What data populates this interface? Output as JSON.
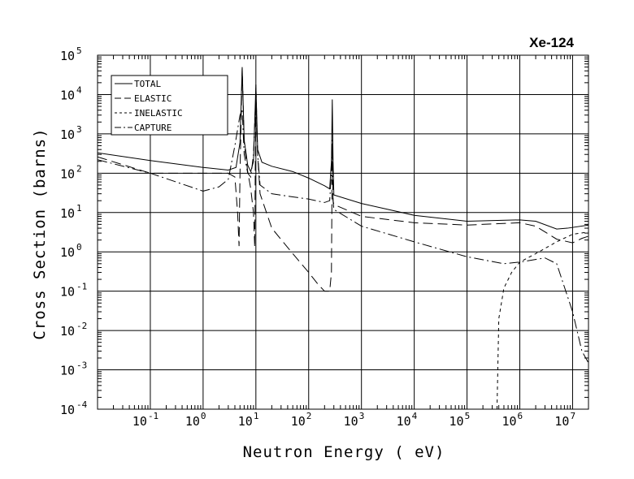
{
  "chart_data": {
    "type": "line",
    "title": "Xe-124",
    "xlabel": "Neutron Energy ( eV)",
    "ylabel": "Cross Section (barns)",
    "xscale": "log",
    "yscale": "log",
    "xlim": [
      0.01,
      20000000
    ],
    "ylim": [
      0.0001,
      100000
    ],
    "grid": true,
    "legend_position": "top-left",
    "x_ticks": [
      {
        "base": "10",
        "exp": "-1",
        "value": 0.1
      },
      {
        "base": "10",
        "exp": "0",
        "value": 1
      },
      {
        "base": "10",
        "exp": "1",
        "value": 10
      },
      {
        "base": "10",
        "exp": "2",
        "value": 100
      },
      {
        "base": "10",
        "exp": "3",
        "value": 1000
      },
      {
        "base": "10",
        "exp": "4",
        "value": 10000
      },
      {
        "base": "10",
        "exp": "5",
        "value": 100000
      },
      {
        "base": "10",
        "exp": "6",
        "value": 1000000
      },
      {
        "base": "10",
        "exp": "7",
        "value": 10000000
      }
    ],
    "y_ticks": [
      {
        "base": "10",
        "exp": "5",
        "value": 100000
      },
      {
        "base": "10",
        "exp": "4",
        "value": 10000
      },
      {
        "base": "10",
        "exp": "3",
        "value": 1000
      },
      {
        "base": "10",
        "exp": "2",
        "value": 100
      },
      {
        "base": "10",
        "exp": "1",
        "value": 10
      },
      {
        "base": "10",
        "exp": "0",
        "value": 1
      },
      {
        "base": "10",
        "exp": "-1",
        "value": 0.1
      },
      {
        "base": "10",
        "exp": "-2",
        "value": 0.01
      },
      {
        "base": "10",
        "exp": "-3",
        "value": 0.001
      },
      {
        "base": "10",
        "exp": "-4",
        "value": 0.0001
      }
    ],
    "series": [
      {
        "name": "TOTAL",
        "dash": "solid",
        "points": [
          [
            0.01,
            330
          ],
          [
            0.1,
            210
          ],
          [
            1,
            140
          ],
          [
            3,
            120
          ],
          [
            4.2,
            140
          ],
          [
            5,
            600
          ],
          [
            5.5,
            50000
          ],
          [
            6,
            700
          ],
          [
            7,
            160
          ],
          [
            8,
            110
          ],
          [
            9,
            200
          ],
          [
            10,
            18000
          ],
          [
            10.8,
            400
          ],
          [
            13,
            190
          ],
          [
            20,
            150
          ],
          [
            50,
            110
          ],
          [
            100,
            75
          ],
          [
            200,
            48
          ],
          [
            250,
            40
          ],
          [
            270,
            200
          ],
          [
            280,
            7500
          ],
          [
            290,
            200
          ],
          [
            300,
            28
          ],
          [
            1000,
            17
          ],
          [
            10000,
            8.5
          ],
          [
            100000,
            6
          ],
          [
            1000000,
            6.5
          ],
          [
            2000000,
            6
          ],
          [
            5000000,
            3.8
          ],
          [
            8000000,
            4
          ],
          [
            20000000,
            4.8
          ]
        ]
      },
      {
        "name": "ELASTIC",
        "dash": "long",
        "points": [
          [
            0.01,
            260
          ],
          [
            0.1,
            100
          ],
          [
            1,
            100
          ],
          [
            3,
            100
          ],
          [
            4,
            80
          ],
          [
            4.5,
            10
          ],
          [
            4.8,
            1.4
          ],
          [
            5,
            100
          ],
          [
            5.5,
            45000
          ],
          [
            6,
            600
          ],
          [
            7,
            110
          ],
          [
            8,
            40
          ],
          [
            9,
            10
          ],
          [
            9.5,
            1.3
          ],
          [
            10,
            17000
          ],
          [
            10.8,
            300
          ],
          [
            12,
            30
          ],
          [
            20,
            4
          ],
          [
            50,
            0.9
          ],
          [
            100,
            0.3
          ],
          [
            150,
            0.15
          ],
          [
            200,
            0.1
          ],
          [
            250,
            0.1
          ],
          [
            270,
            0.3
          ],
          [
            280,
            500
          ],
          [
            290,
            20
          ],
          [
            300,
            16
          ],
          [
            1000,
            8
          ],
          [
            10000,
            5.5
          ],
          [
            100000,
            4.8
          ],
          [
            1000000,
            5.5
          ],
          [
            2000000,
            4.5
          ],
          [
            5000000,
            2.1
          ],
          [
            10000000,
            1.7
          ],
          [
            15000000,
            2.2
          ],
          [
            20000000,
            2.5
          ]
        ]
      },
      {
        "name": "INELASTIC",
        "dash": "short",
        "points": [
          [
            370000,
            0.0001
          ],
          [
            400000,
            0.02
          ],
          [
            500000,
            0.12
          ],
          [
            700000,
            0.3
          ],
          [
            1000000,
            0.55
          ],
          [
            2000000,
            0.9
          ],
          [
            5000000,
            1.8
          ],
          [
            10000000,
            2.8
          ],
          [
            20000000,
            3.2
          ]
        ]
      },
      {
        "name": "CAPTURE",
        "dash": "dashdot",
        "points": [
          [
            0.01,
            220
          ],
          [
            0.1,
            100
          ],
          [
            1,
            35
          ],
          [
            2,
            45
          ],
          [
            3,
            70
          ],
          [
            4,
            500
          ],
          [
            5,
            3000
          ],
          [
            5.5,
            4000
          ],
          [
            6,
            300
          ],
          [
            7,
            100
          ],
          [
            8,
            80
          ],
          [
            9,
            300
          ],
          [
            10,
            10000
          ],
          [
            10.8,
            300
          ],
          [
            12,
            50
          ],
          [
            20,
            30
          ],
          [
            50,
            25
          ],
          [
            100,
            22
          ],
          [
            200,
            18
          ],
          [
            250,
            20
          ],
          [
            270,
            100
          ],
          [
            280,
            700
          ],
          [
            290,
            20
          ],
          [
            300,
            12
          ],
          [
            1000,
            4.5
          ],
          [
            10000,
            1.8
          ],
          [
            100000,
            0.75
          ],
          [
            500000,
            0.5
          ],
          [
            1000000,
            0.55
          ],
          [
            3000000,
            0.7
          ],
          [
            5000000,
            0.5
          ],
          [
            10000000,
            0.03
          ],
          [
            15000000,
            0.003
          ],
          [
            20000000,
            0.0015
          ]
        ]
      }
    ]
  }
}
